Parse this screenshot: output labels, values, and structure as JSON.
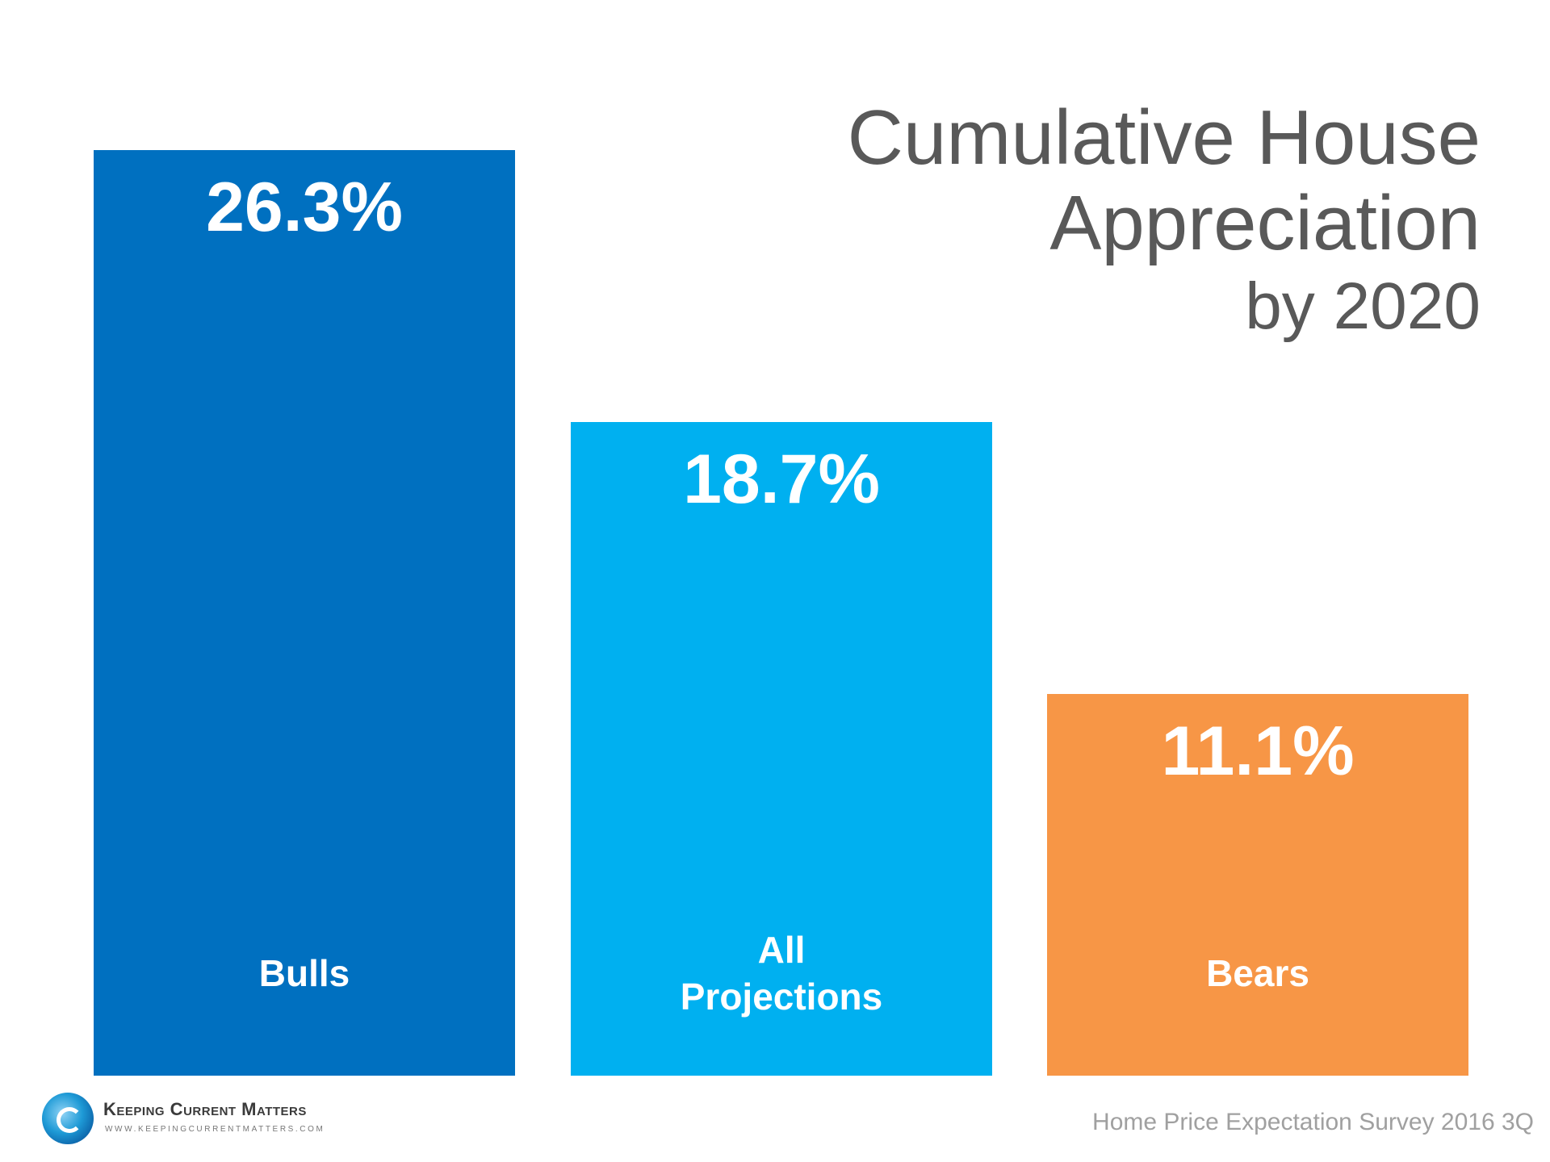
{
  "title": {
    "line1": "Cumulative House",
    "line2": "Appreciation",
    "line3": "by 2020"
  },
  "source": "Home Price Expectation Survey 2016 3Q",
  "logo": {
    "name": "Keeping Current Matters",
    "url": "WWW.KEEPINGCURRENTMATTERS.COM",
    "icon": "swirl-logo-icon"
  },
  "chart_data": {
    "type": "bar",
    "title": "Cumulative House Appreciation by 2020",
    "xlabel": "",
    "ylabel": "",
    "categories": [
      "Bulls",
      "All Projections",
      "Bears"
    ],
    "category_lines": [
      [
        "Bulls"
      ],
      [
        "All",
        "Projections"
      ],
      [
        "Bears"
      ]
    ],
    "values": [
      26.3,
      18.7,
      11.1
    ],
    "value_labels": [
      "26.3%",
      "18.7%",
      "11.1%"
    ],
    "colors": [
      "#0070c0",
      "#00b0f0",
      "#f79646"
    ],
    "ylim": [
      0,
      26.3
    ],
    "grid": false,
    "legend": "none"
  }
}
